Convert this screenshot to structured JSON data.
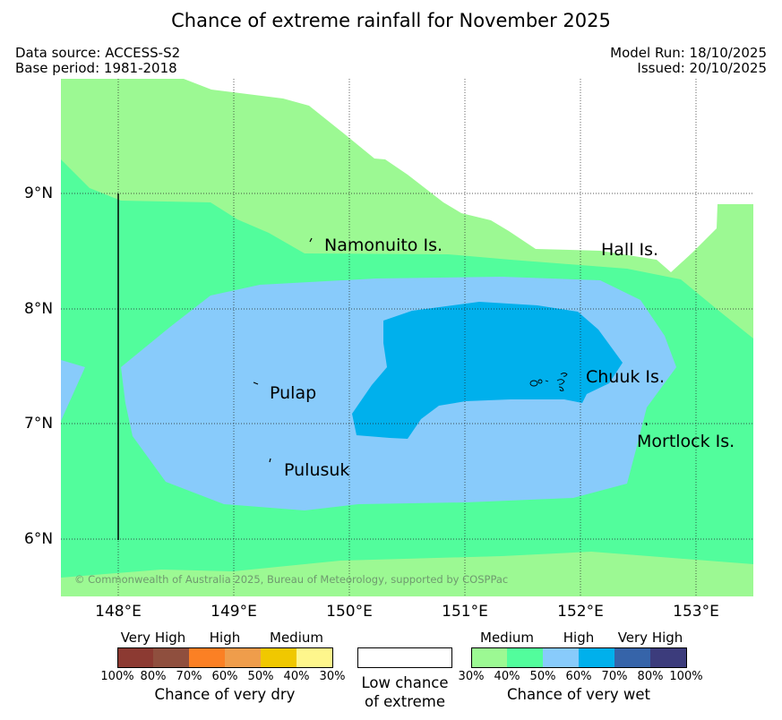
{
  "title": "Chance of extreme rainfall for November 2025",
  "meta": {
    "data_source": "Data source: ACCESS-S2",
    "base_period": "Base period: 1981-2018",
    "model_run": "Model Run: 18/10/2025",
    "issued": "Issued: 20/10/2025"
  },
  "axes": {
    "lon_labels": [
      "148°E",
      "149°E",
      "150°E",
      "151°E",
      "152°E",
      "153°E"
    ],
    "lat_labels": [
      "9°N",
      "8°N",
      "7°N",
      "6°N"
    ]
  },
  "places": {
    "namonuito": "Namonuito Is.",
    "hall": "Hall Is.",
    "pulap": "Pulap",
    "chuuk": "Chuuk Is.",
    "mortlock": "Mortlock Is.",
    "pulusuk": "Pulusuk"
  },
  "copyright": "© Commonwealth of Australia 2025, Bureau of Meteorology, supported by COSPPac",
  "legend": {
    "dry": {
      "categories": [
        "Very High",
        "High",
        "Medium"
      ],
      "ticks": [
        "100%",
        "80%",
        "70%",
        "60%",
        "50%",
        "40%",
        "30%"
      ],
      "colors": [
        "#8c3a32",
        "#8f4f3e",
        "#fb8024",
        "#ef9d4b",
        "#f0c800",
        "#fef68c"
      ],
      "title": "Chance of very dry"
    },
    "low": {
      "line1": "Low chance",
      "line2": "of extreme"
    },
    "wet": {
      "categories": [
        "Medium",
        "High",
        "Very High"
      ],
      "ticks": [
        "30%",
        "40%",
        "50%",
        "60%",
        "70%",
        "80%",
        "100%"
      ],
      "colors": [
        "#9cf993",
        "#52fd9c",
        "#88cbfb",
        "#00b0ec",
        "#3664a9",
        "#3c3c7c"
      ],
      "title": "Chance of very wet"
    }
  },
  "colors": {
    "medium_30_40": "#9cf993",
    "medium_40_50": "#52fd9c",
    "high_50_60": "#88cbfb",
    "high_60_70": "#00b0ec"
  }
}
